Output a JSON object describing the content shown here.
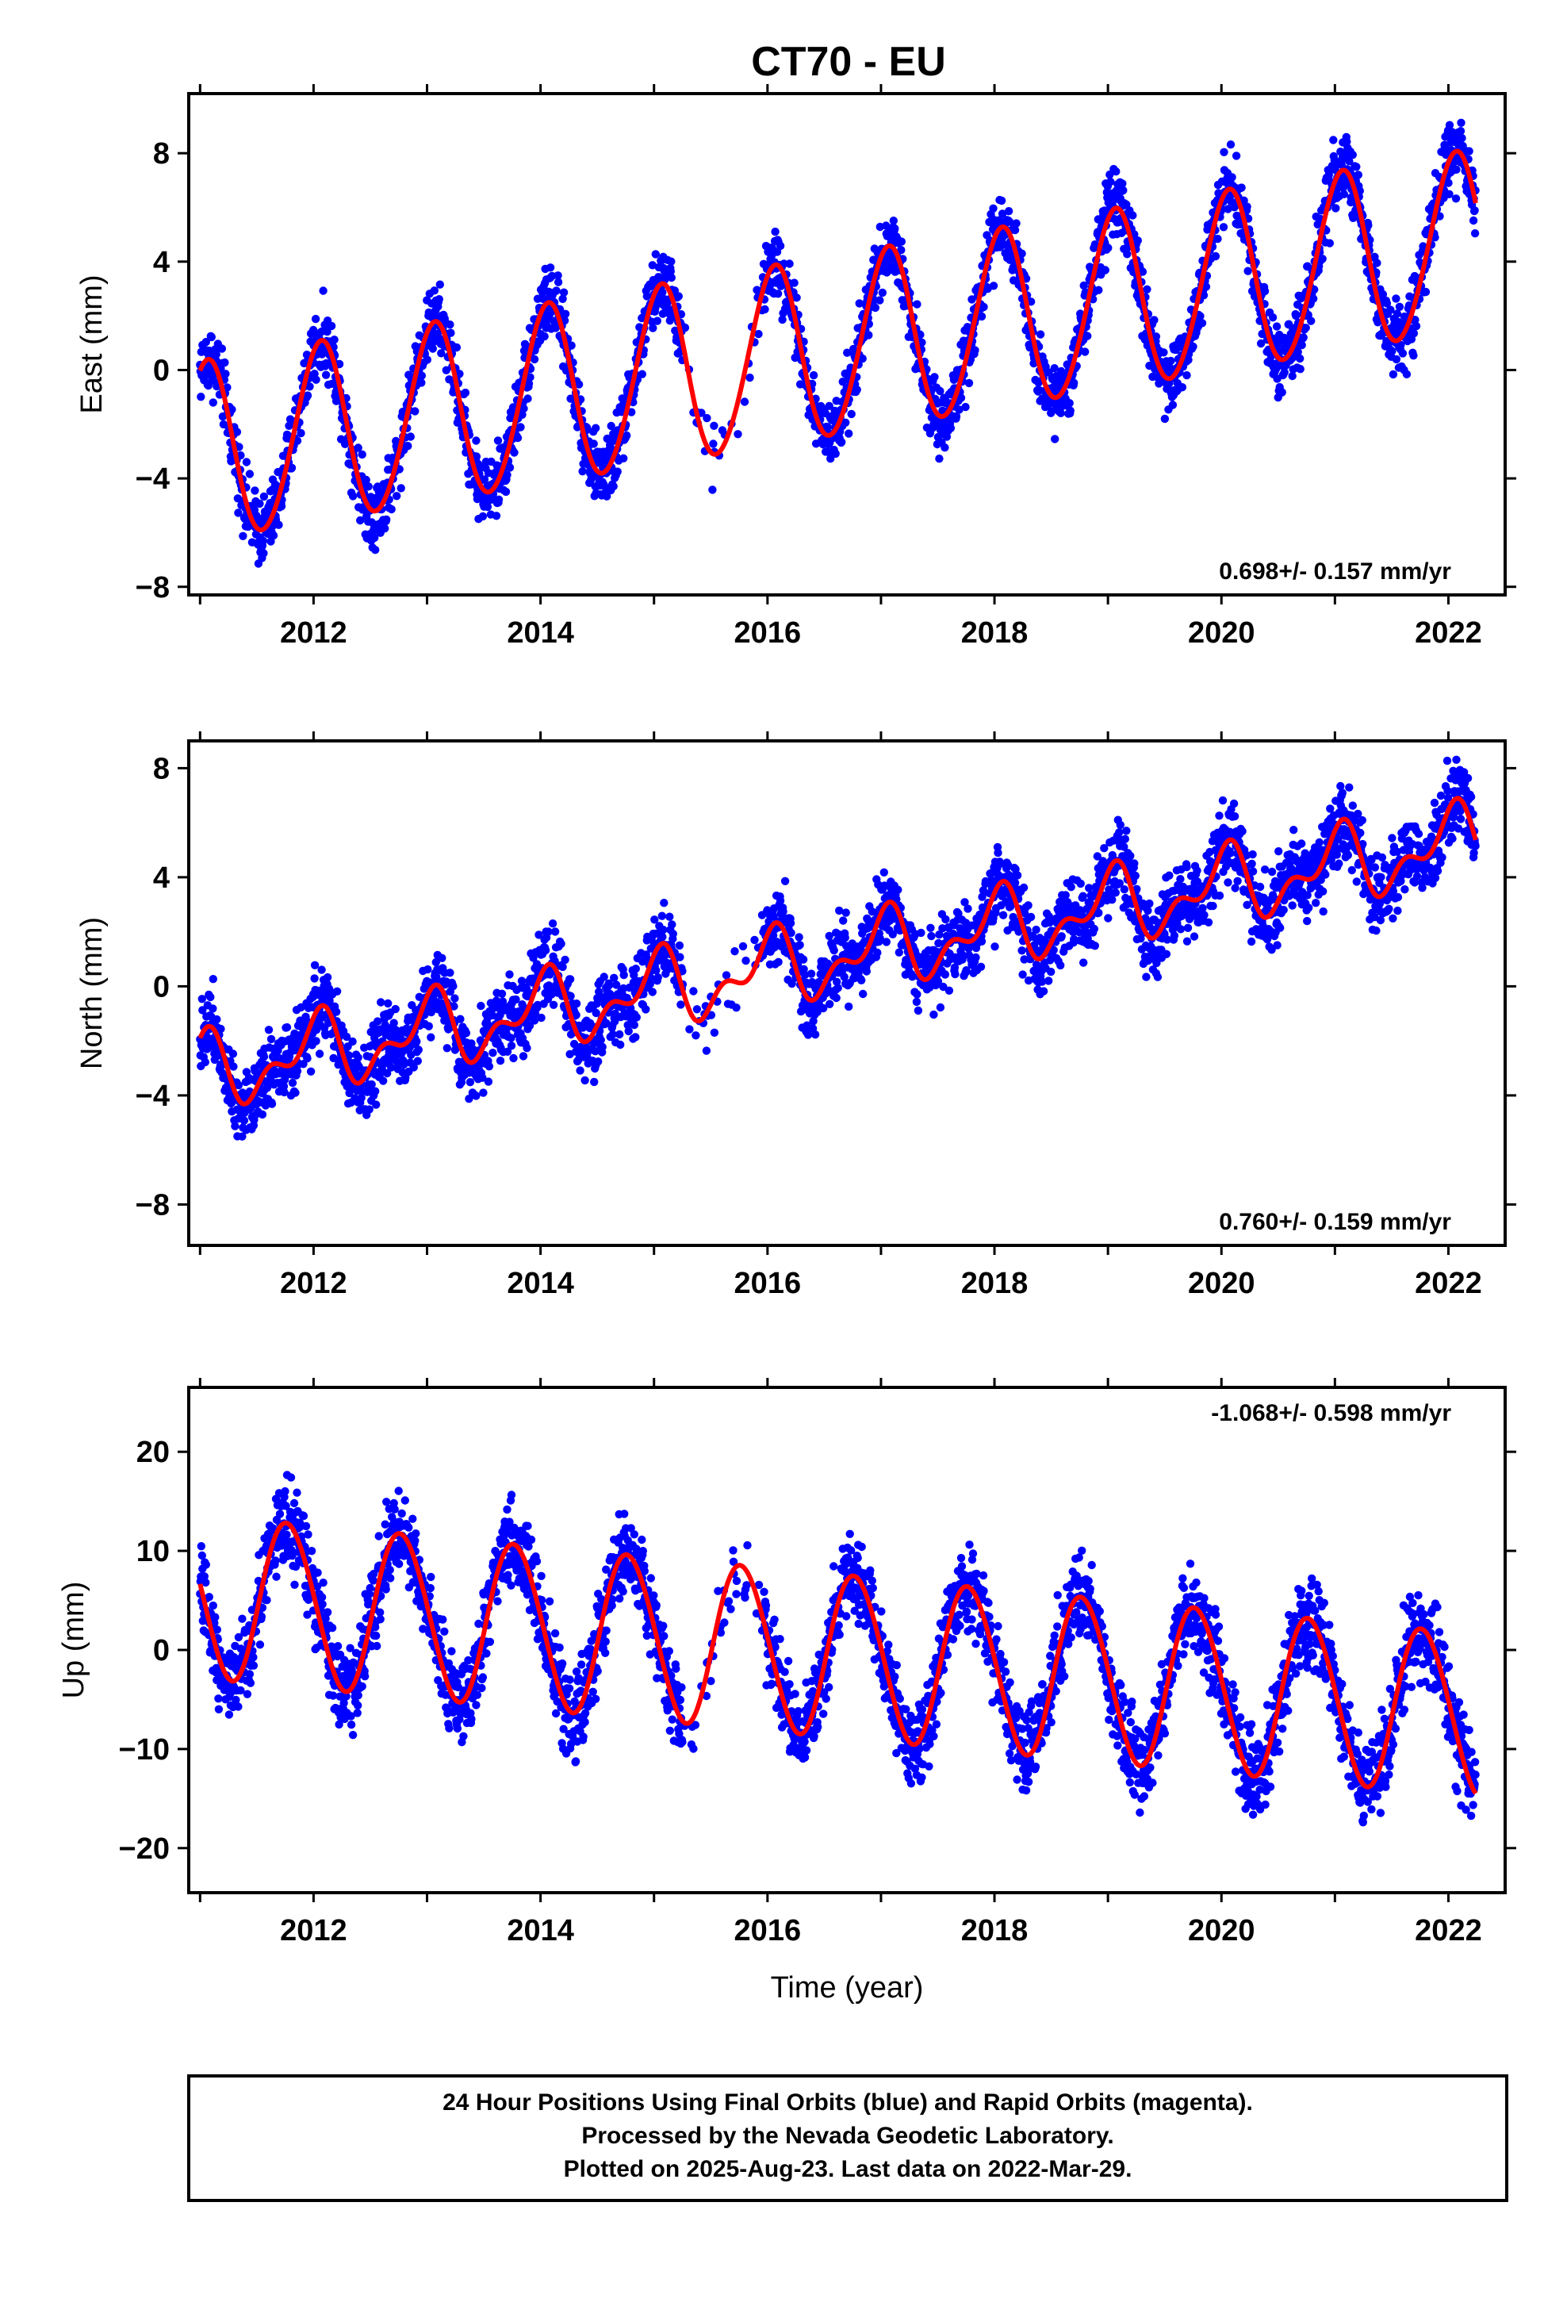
{
  "title": "CT70 - EU",
  "colors": {
    "points": "#0000ff",
    "fit": "#ff0000",
    "frame": "#000000"
  },
  "chart_data": [
    {
      "type": "scatter",
      "component": "east",
      "ylabel": "East (mm)",
      "xlim": [
        2010.9,
        2022.5
      ],
      "ylim": [
        -8.3,
        10.2
      ],
      "x_ticks": [
        2012,
        2014,
        2016,
        2018,
        2020,
        2022
      ],
      "y_ticks": [
        -8,
        -4,
        0,
        4,
        8
      ],
      "y_tick_labels": [
        "−8",
        "−4",
        "0",
        "4",
        "8"
      ],
      "rate_label": "0.698+/- 0.157 mm/yr",
      "rate_position": "bottom-right",
      "model": {
        "offset": -3.1,
        "trend": 0.698,
        "annual_amplitude": 3.3,
        "annual_phase": 1.2,
        "semiannual_amplitude": 0.2,
        "semiannual_phase": 0.0,
        "scatter": 0.9
      },
      "series": [
        {
          "name": "",
          "color": "#0000ff",
          "style": "points"
        },
        {
          "name": "",
          "color": "#ff0000",
          "style": "line"
        }
      ]
    },
    {
      "type": "scatter",
      "component": "north",
      "ylabel": "North (mm)",
      "xlim": [
        2010.9,
        2022.5
      ],
      "ylim": [
        -9.5,
        9.0
      ],
      "x_ticks": [
        2012,
        2014,
        2016,
        2018,
        2020,
        2022
      ],
      "y_ticks": [
        -8,
        -4,
        0,
        4,
        8
      ],
      "y_tick_labels": [
        "−8",
        "−4",
        "0",
        "4",
        "8"
      ],
      "rate_label": "0.760+/- 0.159 mm/yr",
      "rate_position": "bottom-right",
      "model": {
        "offset": -3.2,
        "trend": 0.76,
        "annual_amplitude": 1.1,
        "annual_phase": 1.5,
        "semiannual_amplitude": 0.7,
        "semiannual_phase": 0.3,
        "scatter": 1.0
      },
      "series": [
        {
          "name": "",
          "color": "#0000ff",
          "style": "points"
        },
        {
          "name": "",
          "color": "#ff0000",
          "style": "line"
        }
      ]
    },
    {
      "type": "scatter",
      "component": "up",
      "ylabel": "Up (mm)",
      "xlabel": "Time (year)",
      "xlim": [
        2010.9,
        2022.5
      ],
      "ylim": [
        -24.5,
        26.5
      ],
      "x_ticks": [
        2012,
        2014,
        2016,
        2018,
        2020,
        2022
      ],
      "y_ticks": [
        -20,
        -10,
        0,
        10,
        20
      ],
      "y_tick_labels": [
        "−20",
        "−10",
        "0",
        "10",
        "20"
      ],
      "rate_label": "-1.068+/- 0.598 mm/yr",
      "rate_position": "top-right",
      "model": {
        "offset": 5.5,
        "trend": -1.068,
        "annual_amplitude": 8.2,
        "annual_phase": 3.0,
        "semiannual_amplitude": 0.4,
        "semiannual_phase": 0.0,
        "scatter": 3.0
      },
      "series": [
        {
          "name": "",
          "color": "#0000ff",
          "style": "points"
        },
        {
          "name": "",
          "color": "#ff0000",
          "style": "line"
        }
      ]
    }
  ],
  "footer": {
    "line1": "24 Hour Positions Using Final Orbits (blue) and Rapid Orbits (magenta).",
    "line2": "Processed by the Nevada Geodetic Laboratory.",
    "line3": "Plotted on 2025-Aug-23. Last data on 2022-Mar-29."
  }
}
